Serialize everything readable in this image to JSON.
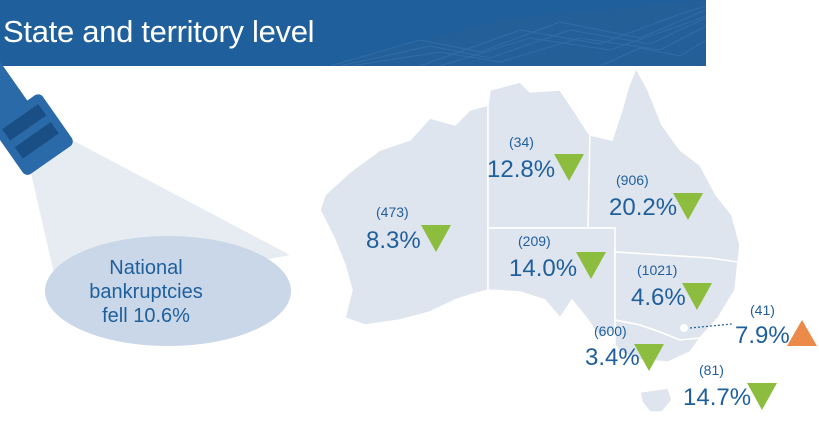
{
  "header": {
    "title": "State and territory level"
  },
  "national": {
    "line1": "National",
    "line2": "bankruptcies",
    "line3": "fell 10.6%"
  },
  "colors": {
    "banner": "#1f5f9c",
    "map": "#dfe5ee",
    "text": "#1f5f9c",
    "down": "#8cbd3f",
    "up": "#ec8a4a"
  },
  "regions": [
    {
      "id": "wa",
      "count": "(473)",
      "pct": "8.3%",
      "trend": "down",
      "icon": "triangle-down-icon"
    },
    {
      "id": "nt",
      "count": "(34)",
      "pct": "12.8%",
      "trend": "down",
      "icon": "triangle-down-icon"
    },
    {
      "id": "qld",
      "count": "(906)",
      "pct": "20.2%",
      "trend": "down",
      "icon": "triangle-down-icon"
    },
    {
      "id": "sa",
      "count": "(209)",
      "pct": "14.0%",
      "trend": "down",
      "icon": "triangle-down-icon"
    },
    {
      "id": "nsw",
      "count": "(1021)",
      "pct": "4.6%",
      "trend": "down",
      "icon": "triangle-down-icon"
    },
    {
      "id": "act",
      "count": "(41)",
      "pct": "7.9%",
      "trend": "up",
      "icon": "triangle-up-icon"
    },
    {
      "id": "vic",
      "count": "(600)",
      "pct": "3.4%",
      "trend": "down",
      "icon": "triangle-down-icon"
    },
    {
      "id": "tas",
      "count": "(81)",
      "pct": "14.7%",
      "trend": "down",
      "icon": "triangle-down-icon"
    }
  ]
}
